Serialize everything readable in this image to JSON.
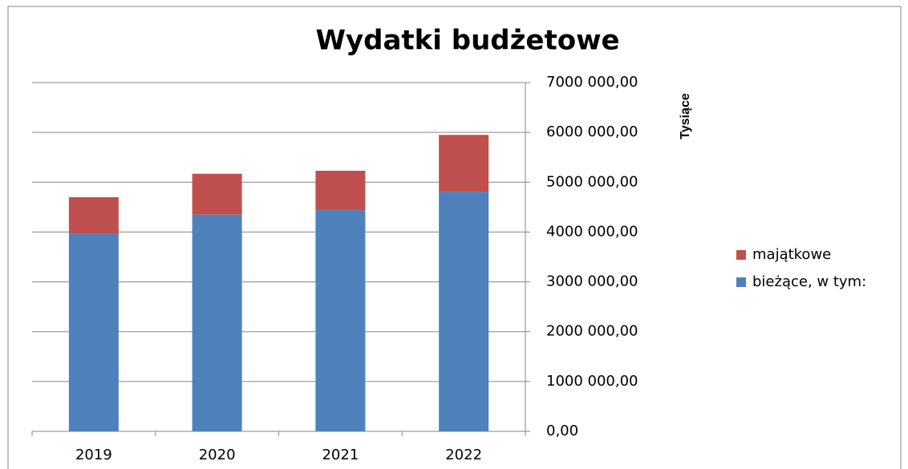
{
  "chart_data": {
    "type": "stacked_bar",
    "title": "Wydatki budżetowe",
    "y_axis_label": "Tysiące",
    "categories": [
      "2019",
      "2020",
      "2021",
      "2022"
    ],
    "series": [
      {
        "name": "bieżące, w tym:",
        "color": "#4f81bd",
        "values": [
          3960000,
          4350000,
          4440000,
          4810000
        ]
      },
      {
        "name": "majątkowe",
        "color": "#c0504d",
        "values": [
          740000,
          820000,
          790000,
          1140000
        ]
      }
    ],
    "ylim": [
      0,
      7000000
    ],
    "yticks": [
      {
        "value": 0,
        "label": "0,00"
      },
      {
        "value": 1000000,
        "label": "1000 000,00"
      },
      {
        "value": 2000000,
        "label": "2000 000,00"
      },
      {
        "value": 3000000,
        "label": "3000 000,00"
      },
      {
        "value": 4000000,
        "label": "4000 000,00"
      },
      {
        "value": 5000000,
        "label": "5000 000,00"
      },
      {
        "value": 6000000,
        "label": "6000 000,00"
      },
      {
        "value": 7000000,
        "label": "7000 000,00"
      }
    ],
    "yaxis_position": "right",
    "grid": true,
    "legend_position": "right"
  }
}
